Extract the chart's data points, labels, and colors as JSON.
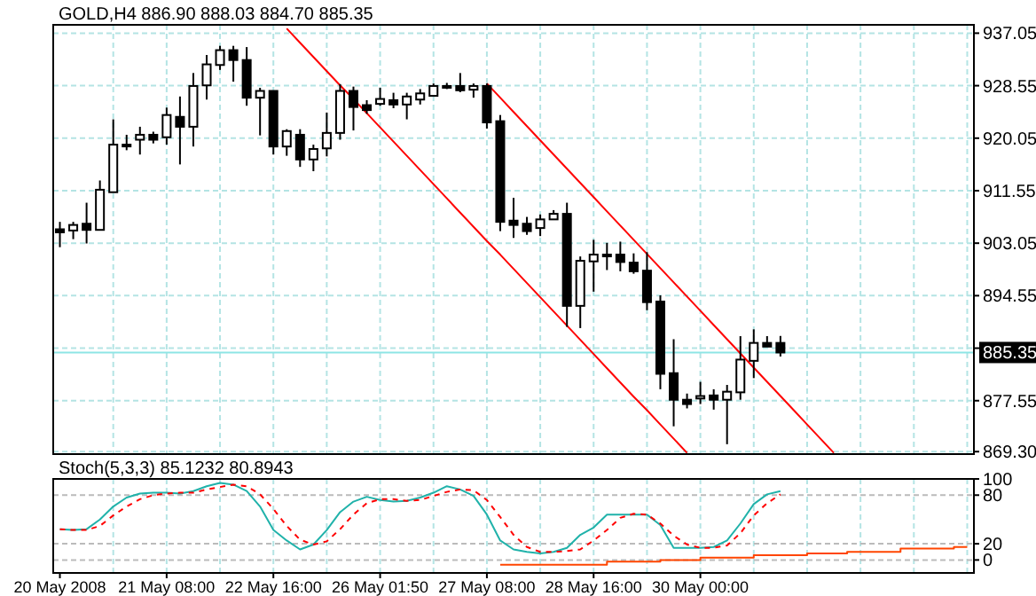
{
  "chart_data": [
    {
      "type": "candlestick",
      "title": "GOLD,H4 886.90 888.03 884.70 885.35",
      "categories": [
        null,
        null,
        null,
        null,
        null,
        null,
        null,
        null,
        null,
        null,
        null,
        null,
        null,
        null,
        null,
        null,
        null,
        null,
        null,
        null,
        null,
        null,
        null,
        null,
        null,
        null,
        null,
        null,
        null,
        null,
        null,
        null,
        null,
        null,
        null,
        null,
        null,
        null,
        null,
        null,
        null,
        null,
        null,
        null,
        null,
        null,
        null,
        null,
        null,
        null,
        null,
        null,
        null,
        null,
        null,
        null,
        null,
        null,
        null,
        null,
        null,
        null,
        null,
        null,
        null,
        null,
        null,
        null,
        null
      ],
      "ohlc": [
        [
          905.3,
          906.5,
          902.4,
          904.8
        ],
        [
          905.1,
          906.5,
          903.7,
          906.0
        ],
        [
          906.2,
          909.6,
          903.0,
          905.2
        ],
        [
          905.2,
          913.2,
          905.1,
          911.7
        ],
        [
          911.3,
          923.1,
          911.3,
          919.0
        ],
        [
          919.0,
          920.6,
          918.1,
          918.9
        ],
        [
          919.8,
          921.9,
          917.4,
          920.6
        ],
        [
          920.6,
          921.1,
          919.2,
          919.8
        ],
        [
          920.2,
          925.0,
          919.0,
          923.8
        ],
        [
          923.5,
          926.8,
          915.8,
          921.9
        ],
        [
          921.9,
          930.6,
          918.7,
          928.5
        ],
        [
          928.6,
          933.5,
          926.3,
          932.0
        ],
        [
          931.9,
          935.0,
          931.1,
          934.3
        ],
        [
          934.3,
          935.0,
          929.2,
          932.7
        ],
        [
          932.7,
          934.8,
          925.3,
          926.6
        ],
        [
          926.6,
          928.2,
          920.5,
          927.7
        ],
        [
          927.7,
          927.7,
          917.4,
          918.7
        ],
        [
          918.7,
          921.5,
          917.2,
          921.2
        ],
        [
          920.6,
          921.5,
          915.4,
          916.6
        ],
        [
          916.6,
          919.0,
          914.7,
          918.3
        ],
        [
          918.4,
          924.2,
          917.1,
          920.9
        ],
        [
          920.9,
          928.8,
          919.8,
          927.7
        ],
        [
          927.7,
          928.4,
          921.3,
          925.1
        ],
        [
          925.4,
          926.2,
          924.0,
          924.6
        ],
        [
          925.6,
          928.2,
          925.3,
          926.4
        ],
        [
          926.2,
          927.4,
          924.9,
          925.5
        ],
        [
          925.5,
          927.4,
          923.1,
          926.8
        ],
        [
          926.3,
          928.0,
          925.5,
          927.3
        ],
        [
          926.9,
          928.9,
          926.9,
          928.5
        ],
        [
          928.4,
          929.0,
          928.0,
          928.5
        ],
        [
          928.5,
          930.6,
          927.5,
          927.8
        ],
        [
          927.9,
          928.9,
          926.6,
          928.5
        ],
        [
          928.5,
          928.9,
          921.6,
          922.6
        ],
        [
          922.8,
          923.8,
          905.0,
          906.5
        ],
        [
          906.7,
          910.4,
          903.9,
          906.0
        ],
        [
          906.2,
          907.3,
          904.4,
          905.0
        ],
        [
          905.5,
          907.7,
          904.2,
          906.9
        ],
        [
          906.9,
          908.4,
          906.9,
          907.8
        ],
        [
          907.8,
          909.6,
          889.5,
          892.9
        ],
        [
          892.9,
          900.9,
          889.3,
          900.2
        ],
        [
          900.1,
          903.6,
          895.2,
          901.2
        ],
        [
          901.1,
          903.1,
          898.7,
          901.2
        ],
        [
          901.2,
          903.3,
          898.5,
          900.0
        ],
        [
          899.9,
          901.4,
          898.1,
          898.5
        ],
        [
          898.6,
          901.6,
          892.2,
          893.5
        ],
        [
          893.6,
          894.6,
          879.4,
          881.9
        ],
        [
          882.0,
          887.5,
          873.4,
          877.7
        ],
        [
          877.7,
          878.7,
          876.3,
          877.0
        ],
        [
          877.9,
          880.6,
          877.0,
          878.3
        ],
        [
          878.4,
          879.4,
          876.1,
          877.7
        ],
        [
          877.7,
          880.1,
          870.5,
          879.0
        ],
        [
          878.9,
          888.0,
          877.7,
          884.2
        ],
        [
          884.0,
          889.1,
          881.2,
          886.9
        ],
        [
          886.9,
          888.0,
          886.3,
          886.3
        ],
        [
          886.9,
          888.03,
          884.7,
          885.35
        ],
        null,
        null,
        null,
        null,
        null,
        null,
        null,
        null,
        null,
        null,
        null,
        null,
        null,
        null
      ],
      "series": [
        {
          "type": "line",
          "color": "#ff0000",
          "values": [
            null,
            null,
            null,
            null,
            null,
            null,
            null,
            null,
            null,
            null,
            null,
            null,
            null,
            null,
            null,
            null,
            null,
            937.8,
            935.5,
            933.2,
            930.9,
            928.6,
            926.4,
            924.1,
            921.8,
            919.5,
            917.2,
            914.9,
            912.6,
            910.3,
            908.0,
            905.7,
            903.4,
            901.2,
            898.9,
            896.6,
            894.3,
            892.0,
            889.7,
            887.4,
            885.1,
            882.8,
            880.5,
            878.2,
            876.0,
            873.7,
            871.4,
            869.1,
            null,
            null,
            null,
            null,
            null,
            null,
            null,
            null,
            null,
            null,
            null,
            null,
            null,
            null,
            null,
            null,
            null,
            null,
            null,
            null,
            null
          ]
        },
        {
          "type": "line",
          "color": "#ff0000",
          "values": [
            null,
            null,
            null,
            null,
            null,
            null,
            null,
            null,
            null,
            null,
            null,
            null,
            null,
            null,
            null,
            null,
            null,
            null,
            null,
            null,
            null,
            null,
            null,
            null,
            null,
            null,
            null,
            null,
            null,
            null,
            null,
            null,
            928.9,
            926.6,
            924.3,
            922.0,
            919.7,
            917.4,
            915.1,
            912.8,
            910.5,
            908.2,
            905.9,
            903.6,
            901.3,
            899.0,
            896.7,
            894.4,
            892.1,
            889.8,
            887.5,
            885.2,
            882.9,
            880.6,
            878.3,
            876.0,
            873.7,
            871.4,
            869.1,
            null,
            null,
            null,
            null,
            null,
            null,
            null,
            null,
            null,
            null
          ]
        }
      ],
      "ylim": [
        868.9,
        938.4
      ],
      "yticks": [
        {
          "value": 937.05,
          "label": "937.05"
        },
        {
          "value": 928.55,
          "label": "928.55"
        },
        {
          "value": 920.05,
          "label": "920.05"
        },
        {
          "value": 911.55,
          "label": "911.55"
        },
        {
          "value": 903.05,
          "label": "903.05"
        },
        {
          "value": 894.55,
          "label": "894.55"
        },
        {
          "value": 886.05,
          "label": null
        },
        {
          "value": 877.55,
          "label": "877.55"
        },
        {
          "value": 869.3,
          "label": "869.30"
        }
      ],
      "ref_lines": [
        {
          "axis": "y",
          "value": 885.35,
          "label": "885.35",
          "color": "#8ee5e5"
        }
      ],
      "grid": true,
      "tick_labels": "y"
    },
    {
      "type": "line",
      "title": "Stoch(5,3,3) 85.1232 80.8943",
      "categories": [
        "20 May 2008",
        null,
        null,
        null,
        null,
        null,
        null,
        null,
        "21 May 08:00",
        null,
        null,
        null,
        null,
        null,
        null,
        null,
        "22 May 16:00",
        null,
        null,
        null,
        null,
        null,
        null,
        null,
        "26 May 01:50",
        null,
        null,
        null,
        null,
        null,
        null,
        null,
        "27 May 08:00",
        null,
        null,
        null,
        null,
        null,
        null,
        null,
        "28 May 16:00",
        null,
        null,
        null,
        null,
        null,
        null,
        null,
        "30 May 00:00",
        null,
        null,
        null,
        null,
        null,
        null,
        null,
        null,
        null,
        null,
        null,
        null,
        null,
        null,
        null,
        null,
        null,
        null,
        null,
        null
      ],
      "series": [
        {
          "color": "#20b2aa",
          "values": [
            38,
            37,
            38,
            50,
            66,
            77,
            82,
            83,
            83,
            82,
            85,
            91,
            95,
            93,
            85,
            66,
            37,
            24,
            13,
            19,
            37,
            59,
            72,
            78,
            74,
            72,
            73,
            77,
            83,
            91,
            87,
            79,
            56,
            24,
            13,
            10,
            8,
            10,
            15,
            31,
            40,
            56,
            56,
            56,
            56,
            43,
            15,
            15,
            15,
            16,
            24,
            45,
            69,
            81,
            85,
            null,
            null,
            null,
            null,
            null,
            null,
            null,
            null,
            null,
            null,
            null,
            null,
            null,
            null
          ]
        },
        {
          "color": "#ff0000",
          "line_style": "dashed",
          "values": [
            38,
            37,
            37,
            42,
            55,
            66,
            75,
            80,
            82,
            83,
            83,
            87,
            90,
            93,
            91,
            81,
            63,
            42,
            25,
            19,
            23,
            38,
            56,
            70,
            75,
            75,
            73,
            74,
            79,
            84,
            87,
            86,
            74,
            53,
            31,
            16,
            10,
            10,
            11,
            13,
            24,
            37,
            52,
            57,
            56,
            45,
            30,
            19,
            15,
            15,
            18,
            33,
            55,
            70,
            81,
            null,
            null,
            null,
            null,
            null,
            null,
            null,
            null,
            null,
            null,
            null,
            null,
            null,
            null
          ]
        },
        {
          "type": "step",
          "color": "#ff4500",
          "values": [
            null,
            null,
            null,
            null,
            null,
            null,
            null,
            null,
            null,
            null,
            null,
            null,
            null,
            null,
            null,
            null,
            null,
            null,
            null,
            null,
            null,
            null,
            null,
            null,
            null,
            null,
            null,
            null,
            null,
            null,
            null,
            null,
            null,
            -6,
            -6,
            -6,
            -6,
            -6,
            -6,
            -6,
            -6,
            -2,
            -2,
            -2,
            -2,
            0,
            0,
            0,
            3,
            3,
            3,
            3,
            6,
            6,
            6,
            6,
            8,
            8,
            8,
            10,
            10,
            10,
            10,
            14,
            14,
            14,
            14,
            16,
            16
          ]
        }
      ],
      "ylim": [
        -16,
        100
      ],
      "yticks": [
        0,
        20,
        80,
        100
      ],
      "grid": true
    }
  ]
}
